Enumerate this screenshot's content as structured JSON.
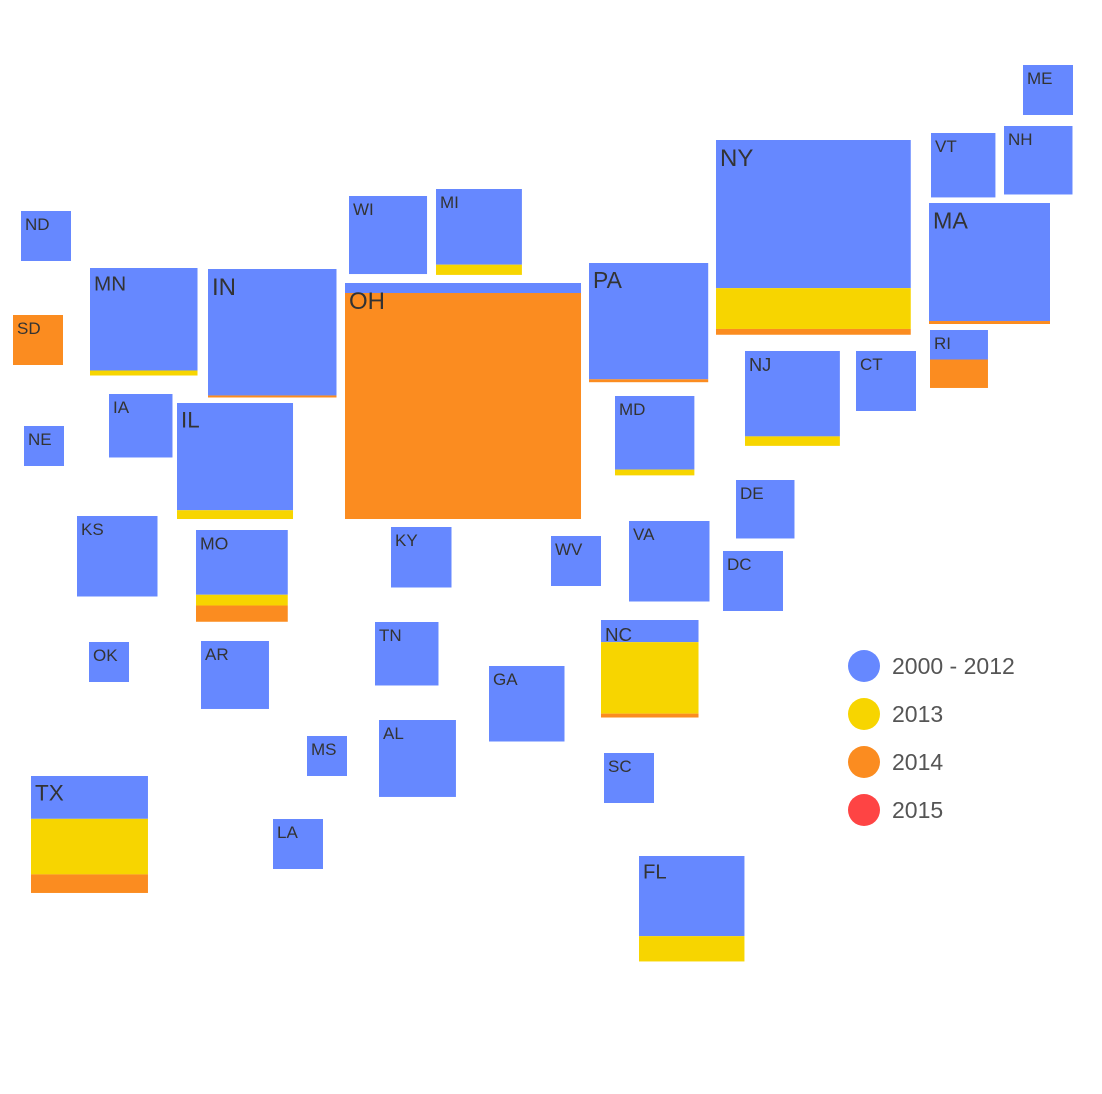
{
  "chart_data": {
    "type": "stacked-square-cartogram",
    "title": "",
    "legend_position": "right",
    "series": [
      {
        "name": "2000 - 2012",
        "color": "#6688ff"
      },
      {
        "name": "2013",
        "color": "#f7d500"
      },
      {
        "name": "2014",
        "color": "#fb8c20"
      },
      {
        "name": "2015",
        "color": "#fe4444"
      }
    ],
    "states": [
      {
        "label": "ME",
        "values": [
          2500,
          0,
          0,
          0
        ]
      },
      {
        "label": "VT",
        "values": [
          4150,
          0,
          0,
          0
        ]
      },
      {
        "label": "NH",
        "values": [
          4690,
          0,
          0,
          0
        ]
      },
      {
        "label": "NY",
        "values": [
          28850,
          7950,
          1130,
          0
        ]
      },
      {
        "label": "MA",
        "values": [
          14280,
          0,
          360,
          0
        ]
      },
      {
        "label": "RI",
        "values": [
          1710,
          0,
          1650,
          0
        ]
      },
      {
        "label": "CT",
        "values": [
          3600,
          0,
          0,
          0
        ]
      },
      {
        "label": "NJ",
        "values": [
          8100,
          900,
          0,
          0
        ]
      },
      {
        "label": "PA",
        "values": [
          13860,
          0,
          350,
          0
        ]
      },
      {
        "label": "MD",
        "values": [
          5840,
          460,
          0,
          0
        ]
      },
      {
        "label": "DE",
        "values": [
          3420,
          0,
          0,
          0
        ]
      },
      {
        "label": "DC",
        "values": [
          3600,
          0,
          0,
          0
        ]
      },
      {
        "label": "VA",
        "values": [
          6480,
          0,
          0,
          0
        ]
      },
      {
        "label": "WV",
        "values": [
          2500,
          0,
          0,
          0
        ]
      },
      {
        "label": "NC",
        "values": [
          2160,
          6970,
          380,
          0
        ]
      },
      {
        "label": "SC",
        "values": [
          2500,
          0,
          0,
          0
        ]
      },
      {
        "label": "GA",
        "values": [
          5700,
          0,
          0,
          0
        ]
      },
      {
        "label": "FL",
        "values": [
          8450,
          2670,
          0,
          0
        ]
      },
      {
        "label": "AL",
        "values": [
          5920,
          0,
          0,
          0
        ]
      },
      {
        "label": "TN",
        "values": [
          4030,
          0,
          0,
          0
        ]
      },
      {
        "label": "KY",
        "values": [
          3660,
          0,
          0,
          0
        ]
      },
      {
        "label": "OH",
        "values": [
          2360,
          0,
          53340,
          0
        ]
      },
      {
        "label": "MI",
        "values": [
          6500,
          880,
          0,
          0
        ]
      },
      {
        "label": "WI",
        "values": [
          6090,
          0,
          0,
          0
        ]
      },
      {
        "label": "IN",
        "values": [
          16250,
          0,
          260,
          0
        ]
      },
      {
        "label": "IL",
        "values": [
          12440,
          1020,
          0,
          0
        ]
      },
      {
        "label": "MN",
        "values": [
          11020,
          540,
          0,
          0
        ]
      },
      {
        "label": "IA",
        "values": [
          4030,
          0,
          0,
          0
        ]
      },
      {
        "label": "MO",
        "values": [
          5940,
          990,
          1490,
          0
        ]
      },
      {
        "label": "AR",
        "values": [
          4620,
          0,
          0,
          0
        ]
      },
      {
        "label": "MS",
        "values": [
          1600,
          0,
          0,
          0
        ]
      },
      {
        "label": "LA",
        "values": [
          2500,
          0,
          0,
          0
        ]
      },
      {
        "label": "TX",
        "values": [
          5010,
          6500,
          2170,
          0
        ]
      },
      {
        "label": "OK",
        "values": [
          1600,
          0,
          0,
          0
        ]
      },
      {
        "label": "KS",
        "values": [
          6480,
          0,
          0,
          0
        ]
      },
      {
        "label": "NE",
        "values": [
          1600,
          0,
          0,
          0
        ]
      },
      {
        "label": "SD",
        "values": [
          0,
          0,
          2500,
          0
        ]
      },
      {
        "label": "ND",
        "values": [
          2500,
          0,
          0,
          0
        ]
      }
    ]
  }
}
